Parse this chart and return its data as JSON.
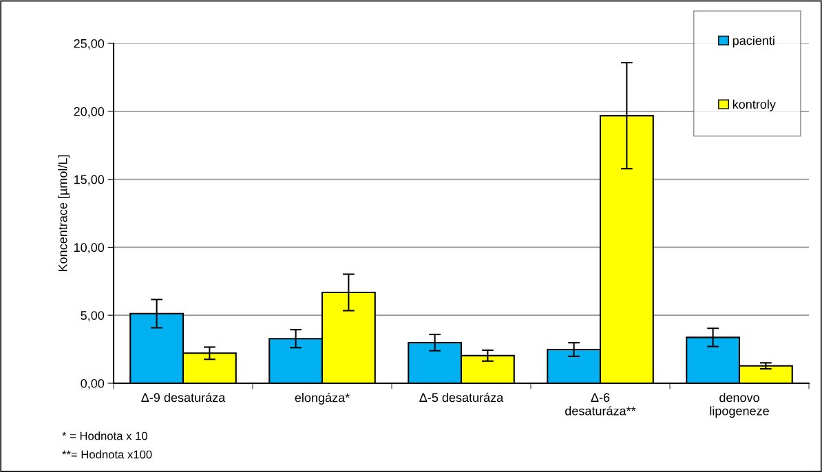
{
  "chart_data": {
    "type": "bar",
    "ylabel": "Koncentrace [µmol/L]",
    "categories": [
      "Δ-9 desaturáza",
      "elongáza*",
      "Δ-5 desaturáza",
      "Δ-6\ndesaturáza**",
      "denovo\nlipogeneze"
    ],
    "series": [
      {
        "name": "pacienti",
        "color": "#00b0f0",
        "values": [
          5.12,
          3.28,
          2.99,
          2.48,
          3.37
        ],
        "errors": [
          1.04,
          0.66,
          0.6,
          0.5,
          0.67
        ]
      },
      {
        "name": "kontroly",
        "color": "#ffff00",
        "values": [
          2.21,
          6.68,
          2.03,
          19.68,
          1.28
        ],
        "errors": [
          0.45,
          1.34,
          0.4,
          3.9,
          0.22
        ]
      }
    ],
    "ylim": [
      0,
      25
    ],
    "yticks": [
      {
        "value": 0,
        "label": "0,00"
      },
      {
        "value": 5,
        "label": "5,00"
      },
      {
        "value": 10,
        "label": "10,00"
      },
      {
        "value": 15,
        "label": "15,00"
      },
      {
        "value": 20,
        "label": "20,00"
      },
      {
        "value": 25,
        "label": "25,00"
      }
    ],
    "grid": "y",
    "legend": "top right",
    "annotations": [
      "* = Hodnota x 10",
      "**= Hodnota x100"
    ]
  }
}
